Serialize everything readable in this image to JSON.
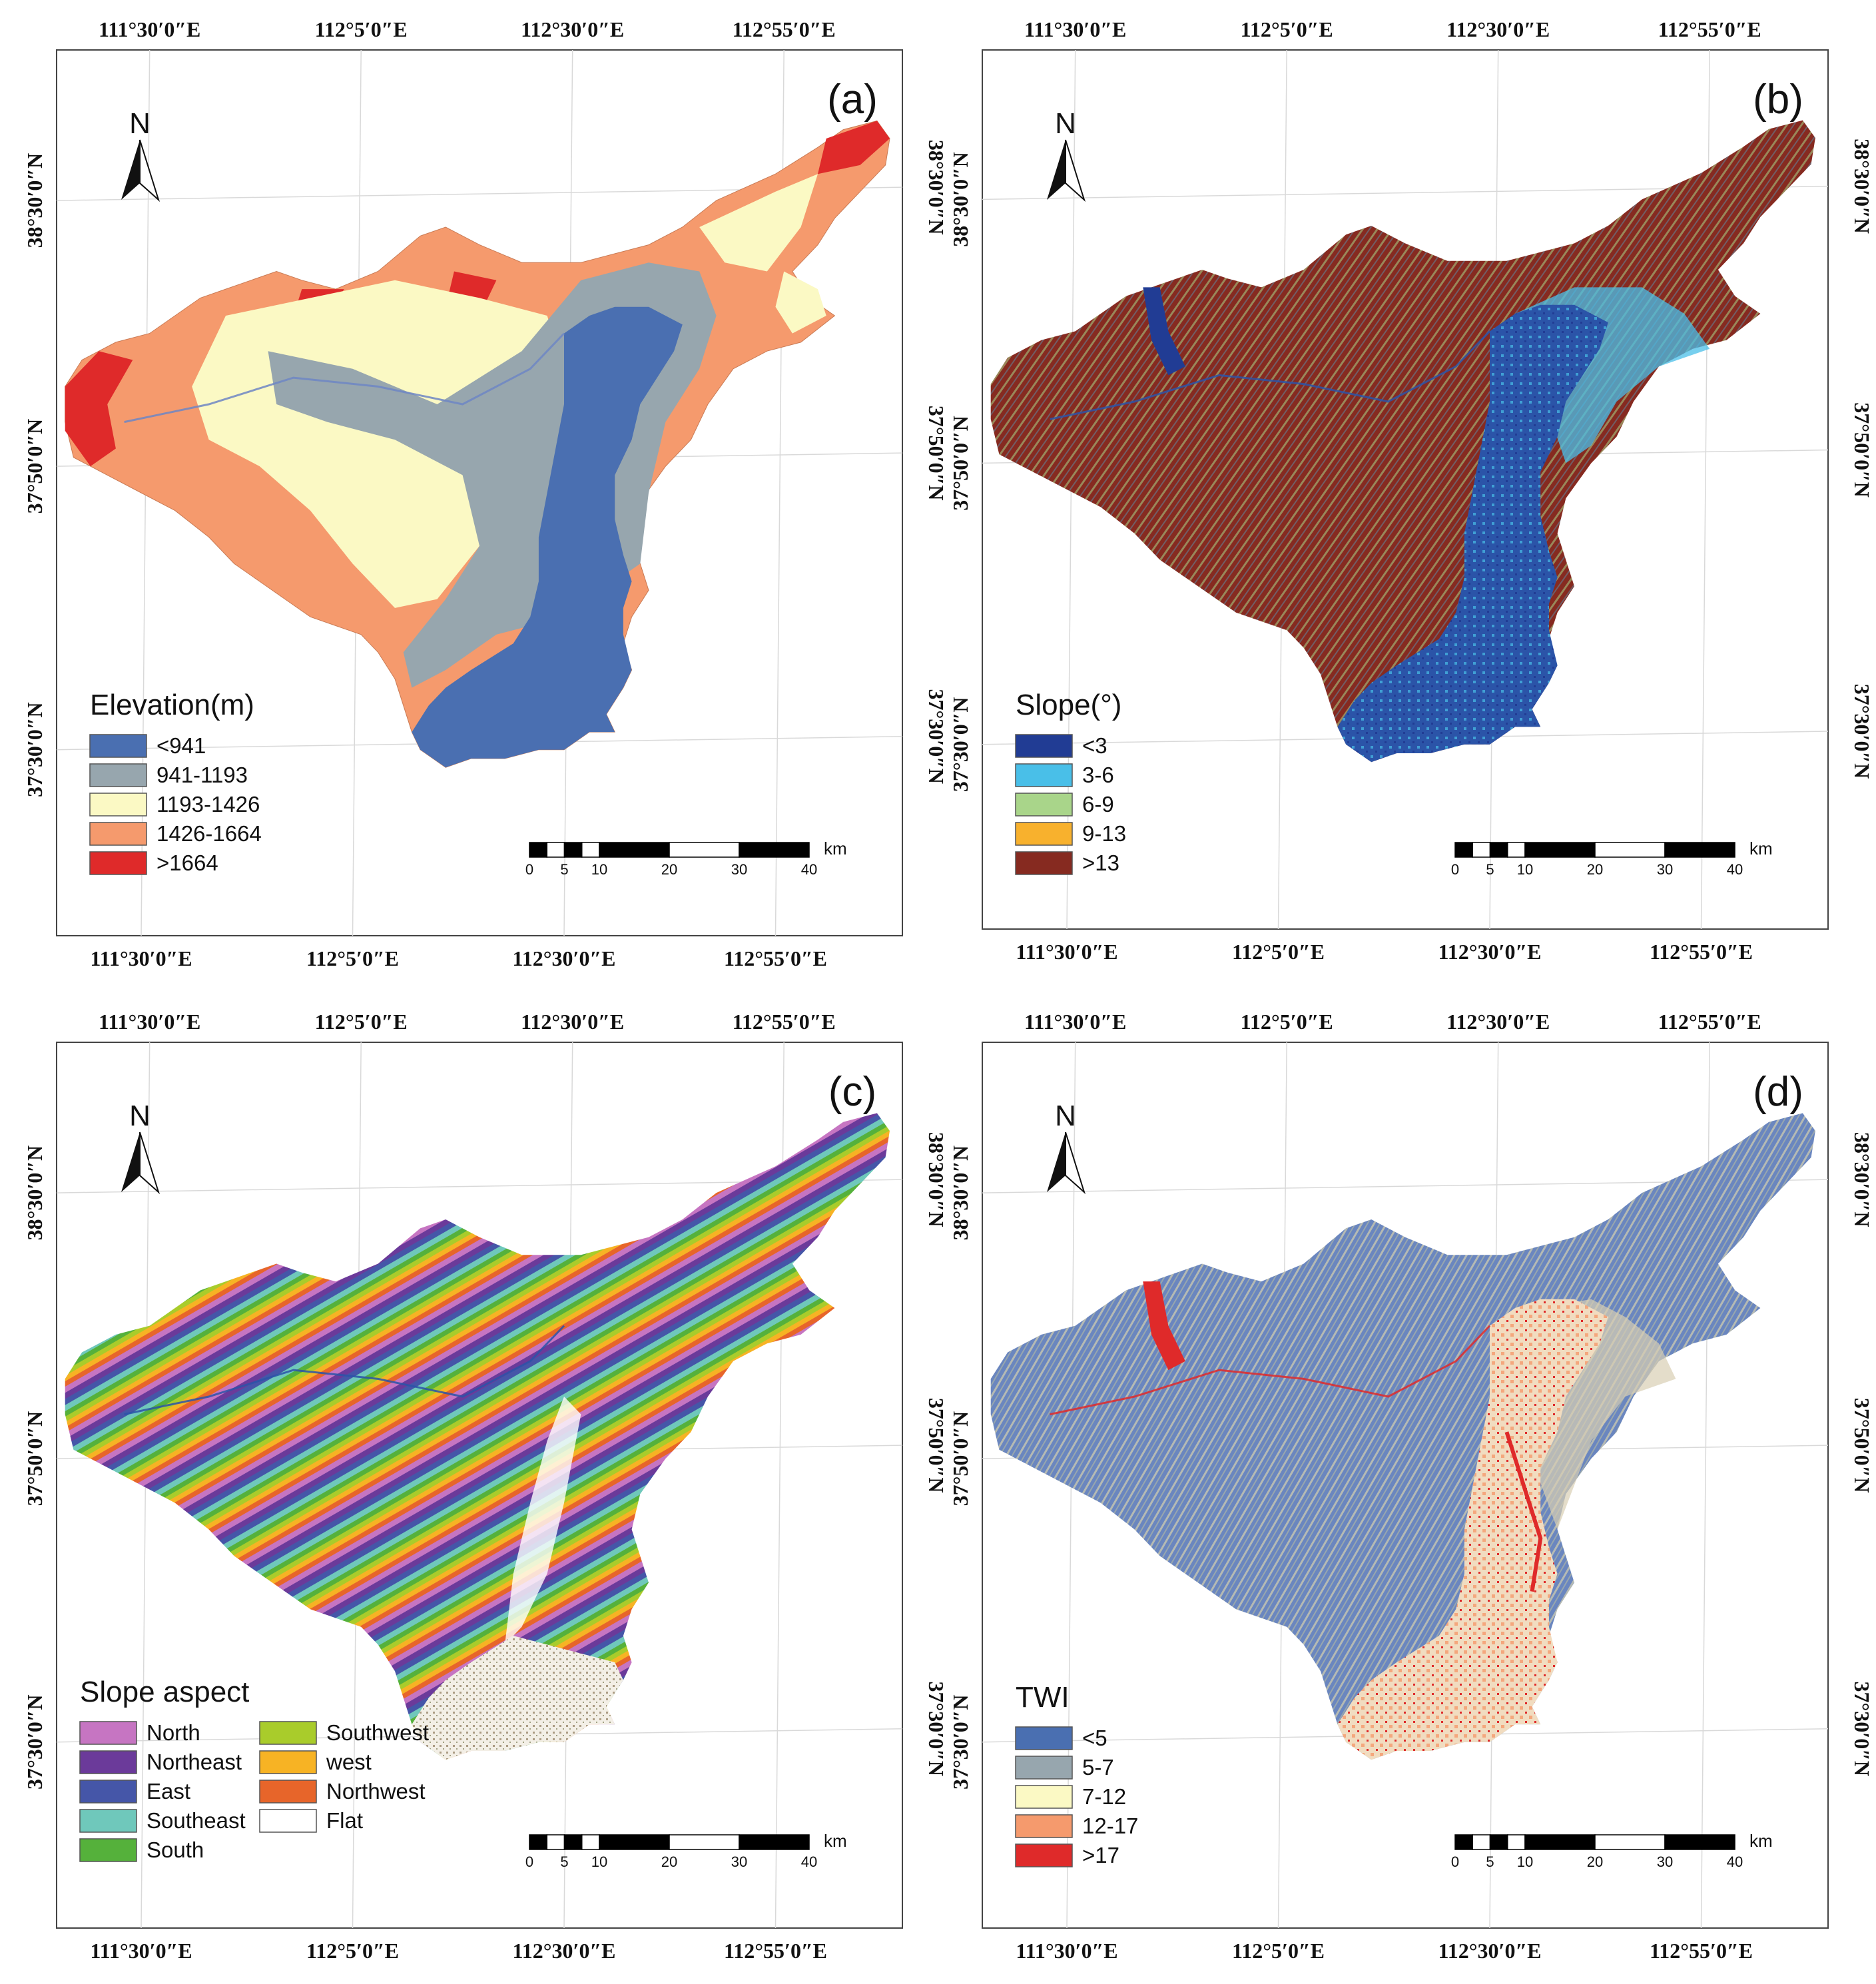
{
  "panels": [
    {
      "id": "a",
      "label": "(a)",
      "theme": "elevation",
      "legend": {
        "title": "Elevation(m)",
        "items": [
          {
            "label": "<941",
            "color": "#4a6fb1"
          },
          {
            "label": "941-1193",
            "color": "#97a6ae"
          },
          {
            "label": "1193-1426",
            "color": "#fbf9c4"
          },
          {
            "label": "1426-1664",
            "color": "#f59a6d"
          },
          {
            "label": ">1664",
            "color": "#df2a2a"
          }
        ]
      }
    },
    {
      "id": "b",
      "label": "(b)",
      "theme": "slope",
      "legend": {
        "title": "Slope(°)",
        "items": [
          {
            "label": "<3",
            "color": "#213c94"
          },
          {
            "label": "3-6",
            "color": "#49bfe8"
          },
          {
            "label": "6-9",
            "color": "#a9d58a"
          },
          {
            "label": "9-13",
            "color": "#f8b12d"
          },
          {
            "label": ">13",
            "color": "#862a20"
          }
        ]
      }
    },
    {
      "id": "c",
      "label": "(c)",
      "theme": "aspect",
      "legend": {
        "title": "Slope aspect",
        "items": [
          {
            "label": "North",
            "color": "#c675c2"
          },
          {
            "label": "Northeast",
            "color": "#6b3a9a"
          },
          {
            "label": "East",
            "color": "#4556a8"
          },
          {
            "label": "Southeast",
            "color": "#6fc8bb"
          },
          {
            "label": "South",
            "color": "#55b13b"
          },
          {
            "label": "Southwest",
            "color": "#a9cc2b"
          },
          {
            "label": "west",
            "color": "#f7b324"
          },
          {
            "label": "Northwest",
            "color": "#e7652a"
          },
          {
            "label": "Flat",
            "color": "#ffffff"
          }
        ]
      }
    },
    {
      "id": "d",
      "label": "(d)",
      "theme": "twi",
      "legend": {
        "title": "TWI",
        "items": [
          {
            "label": "<5",
            "color": "#4a6fb1"
          },
          {
            "label": "5-7",
            "color": "#97a6ae"
          },
          {
            "label": "7-12",
            "color": "#fbf9c4"
          },
          {
            "label": "12-17",
            "color": "#f59a6d"
          },
          {
            "label": ">17",
            "color": "#df2a2a"
          }
        ]
      }
    }
  ],
  "lon_labels": [
    "111°30′0″E",
    "112°5′0″E",
    "112°30′0″E",
    "112°55′0″E"
  ],
  "lat_labels": [
    "38°30′0″N",
    "37°50′0″N",
    "37°30′0″N"
  ],
  "north_arrow_label": "N",
  "scale_bar": {
    "ticks": [
      "0",
      "5",
      "10",
      "20",
      "30",
      "40"
    ],
    "unit": "km"
  }
}
